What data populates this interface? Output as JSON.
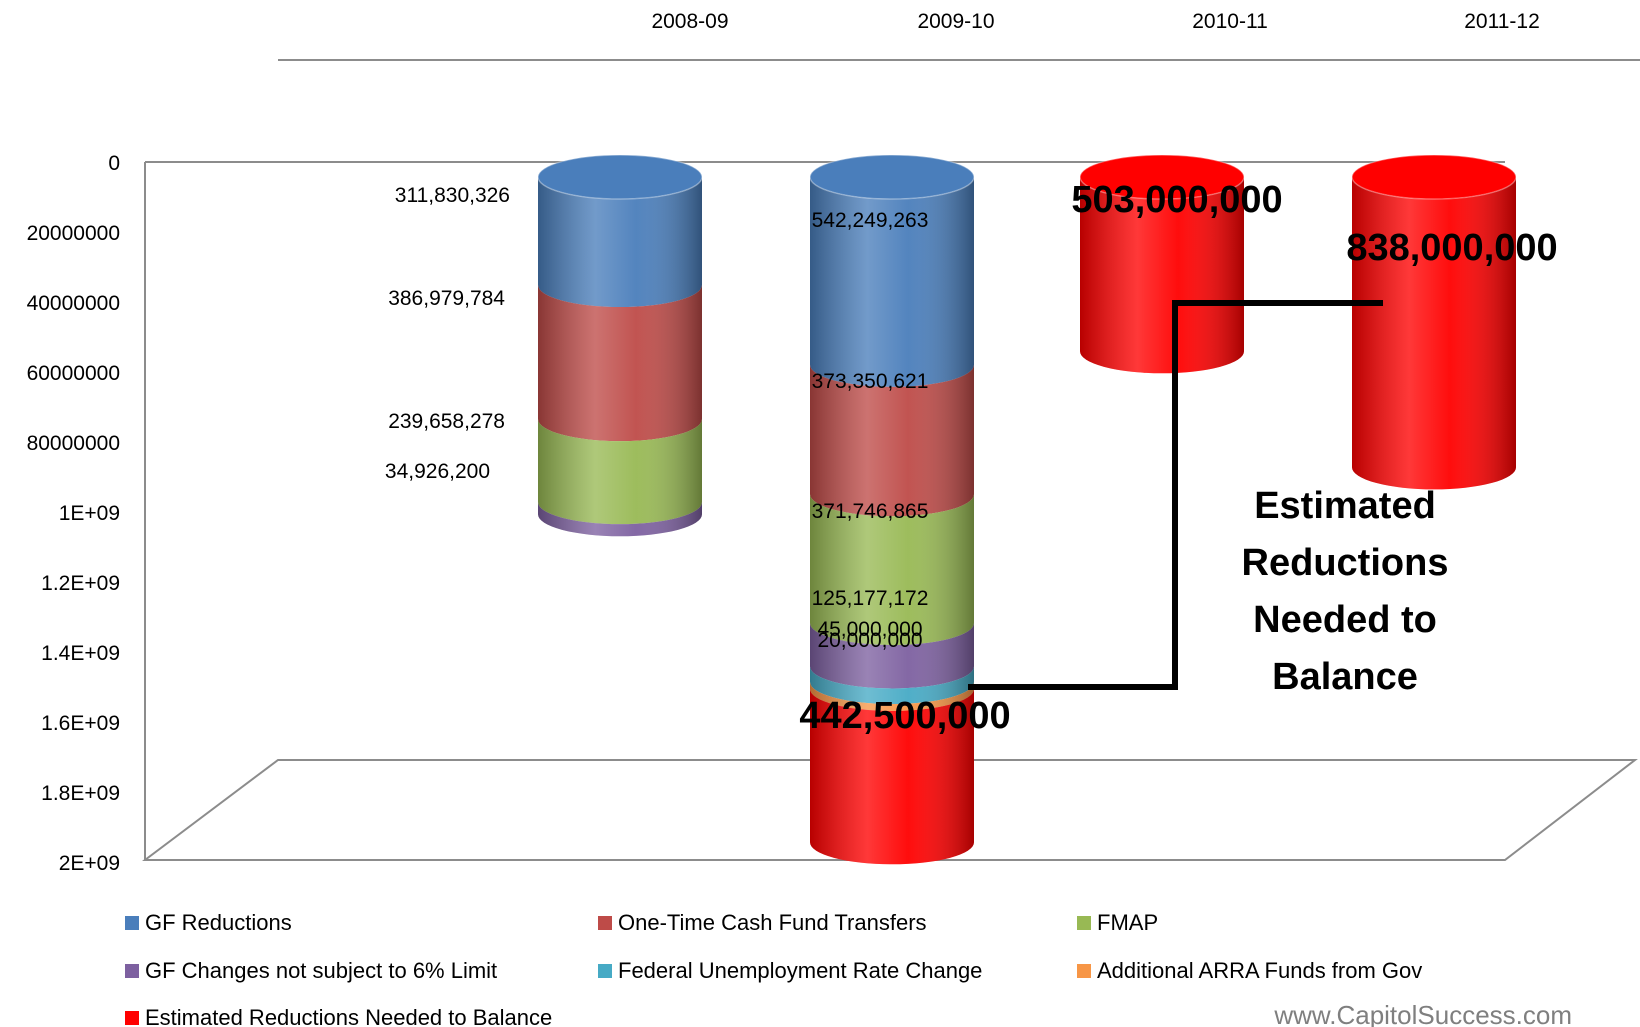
{
  "chart_data": {
    "type": "bar",
    "stacked": true,
    "three_d_cylinder": true,
    "y_axis_reversed": true,
    "ylim": [
      0,
      2000000000
    ],
    "yticks": [
      "0",
      "20000000",
      "40000000",
      "60000000",
      "80000000",
      "1E+09",
      "1.2E+09",
      "1.4E+09",
      "1.6E+09",
      "1.8E+09",
      "2E+09"
    ],
    "categories": [
      "2008-09",
      "2009-10",
      "2010-11",
      "2011-12"
    ],
    "series": [
      {
        "name": "GF Reductions",
        "color": "#4a7ebb",
        "values": [
          311830326,
          542249263,
          0,
          0
        ],
        "labels": [
          "311,830,326",
          "542,249,263",
          "",
          ""
        ]
      },
      {
        "name": "One-Time Cash Fund Transfers",
        "color": "#be4b48",
        "values": [
          386979784,
          373350621,
          0,
          0
        ],
        "labels": [
          "386,979,784",
          "373,350,621",
          "",
          ""
        ]
      },
      {
        "name": "FMAP",
        "color": "#98b954",
        "values": [
          239658278,
          371746865,
          0,
          0
        ],
        "labels": [
          "239,658,278",
          "371,746,865",
          "",
          ""
        ]
      },
      {
        "name": "GF Changes not subject to 6% Limit",
        "color": "#7d60a0",
        "values": [
          34926200,
          125177172,
          0,
          0
        ],
        "labels": [
          "34,926,200",
          "125,177,172",
          "",
          ""
        ]
      },
      {
        "name": "Federal Unemployment Rate Change",
        "color": "#46aac5",
        "values": [
          0,
          45000000,
          0,
          0
        ],
        "labels": [
          "",
          "45,000,000",
          "",
          ""
        ]
      },
      {
        "name": "Additional ARRA Funds from Gov",
        "color": "#f79646",
        "values": [
          0,
          20000000,
          0,
          0
        ],
        "labels": [
          "",
          "20,000,000",
          "",
          ""
        ]
      },
      {
        "name": "Estimated Reductions Needed to Balance",
        "color": "#ff0000",
        "values": [
          0,
          442500000,
          503000000,
          838000000
        ],
        "labels": [
          "",
          "442,500,000",
          "503,000,000",
          "838,000,000"
        ]
      }
    ],
    "annotation": "Estimated Reductions Needed to Balance",
    "legend_position": "bottom",
    "grid": false
  },
  "footer": {
    "text": "www.CapitolSuccess.com"
  }
}
